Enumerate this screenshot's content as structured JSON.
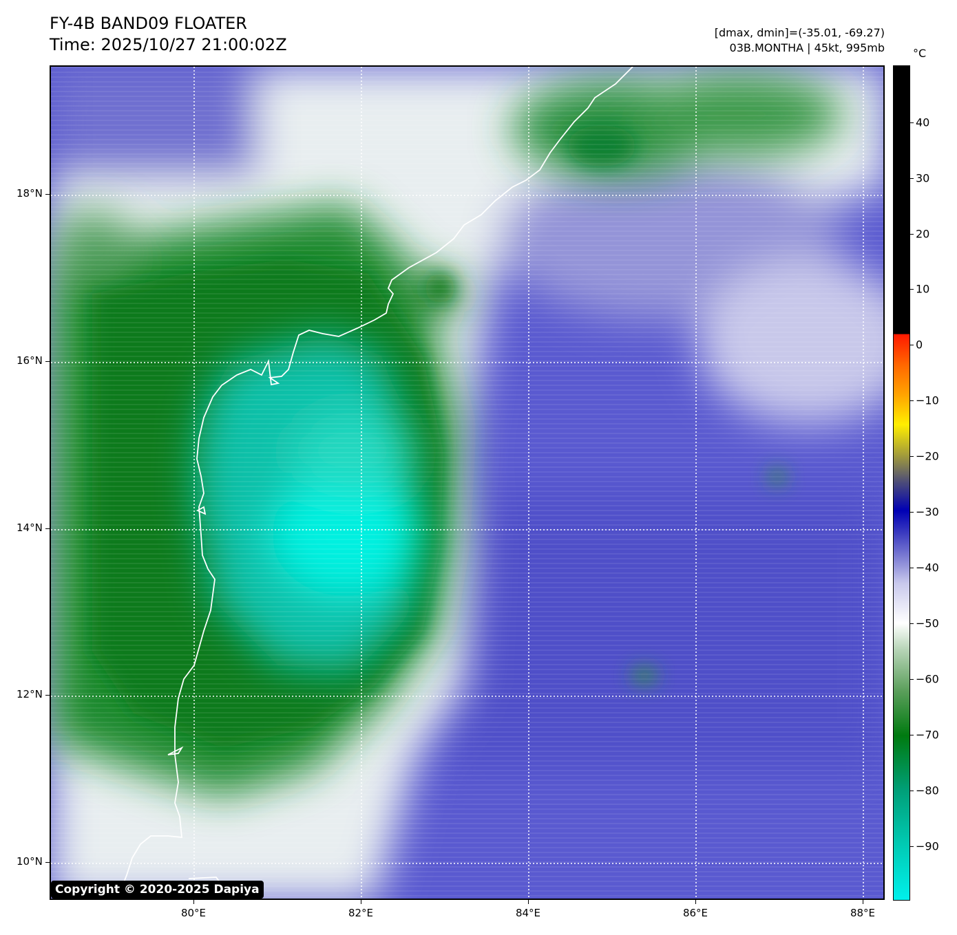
{
  "header": {
    "title": "FY-4B BAND09 FLOATER",
    "time": "Time: 2025/10/27 21:00:02Z",
    "range": "[dmax, dmin]=(-35.01, -69.27)",
    "storm": "03B.MONTHA | 45kt, 995mb"
  },
  "map": {
    "lat_labels": [
      "18°N",
      "16°N",
      "14°N",
      "12°N",
      "10°N"
    ],
    "lon_labels": [
      "80°E",
      "82°E",
      "84°E",
      "86°E",
      "88°E"
    ],
    "copyright": "Copyright © 2020-2025 Dapiya"
  },
  "colorbar": {
    "unit": "°C",
    "ticks": [
      "40",
      "30",
      "20",
      "10",
      "0",
      "−10",
      "−20",
      "−30",
      "−40",
      "−50",
      "−60",
      "−70",
      "−80",
      "−90"
    ]
  },
  "colors": {
    "cold_top": "#00e6e0",
    "deep_convection": "#0a7a1a",
    "clear_ocean": "#5a5ad0",
    "coastline": "#ffffff"
  }
}
